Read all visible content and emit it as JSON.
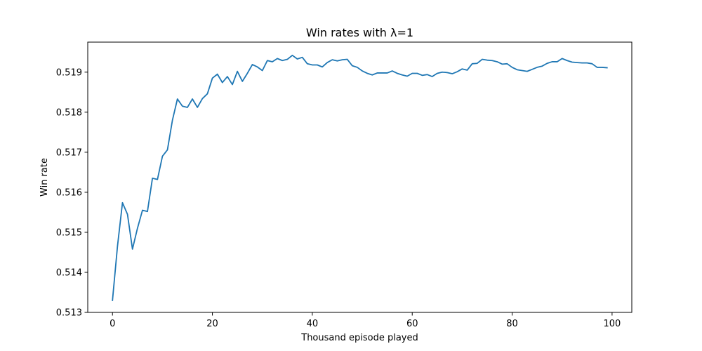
{
  "chart_data": {
    "type": "line",
    "title": "Win rates with λ=1",
    "xlabel": "Thousand episode played",
    "ylabel": "Win rate",
    "xlim": [
      -4.95,
      103.95
    ],
    "ylim": [
      0.513,
      0.51975
    ],
    "x_ticks": [
      0,
      20,
      40,
      60,
      80,
      100
    ],
    "x_tick_labels": [
      "0",
      "20",
      "40",
      "60",
      "80",
      "100"
    ],
    "y_ticks": [
      0.513,
      0.514,
      0.515,
      0.516,
      0.517,
      0.518,
      0.519
    ],
    "y_tick_labels": [
      "0.513",
      "0.514",
      "0.515",
      "0.516",
      "0.517",
      "0.518",
      "0.519"
    ],
    "grid": false,
    "series": [
      {
        "color": "#1f77b4",
        "x": [
          0,
          1,
          2,
          3,
          4,
          5,
          6,
          7,
          8,
          9,
          10,
          11,
          12,
          13,
          14,
          15,
          16,
          17,
          18,
          19,
          20,
          21,
          22,
          23,
          24,
          25,
          26,
          27,
          28,
          29,
          30,
          31,
          32,
          33,
          34,
          35,
          36,
          37,
          38,
          39,
          40,
          41,
          42,
          43,
          44,
          45,
          46,
          47,
          48,
          49,
          50,
          51,
          52,
          53,
          54,
          55,
          56,
          57,
          58,
          59,
          60,
          61,
          62,
          63,
          64,
          65,
          66,
          67,
          68,
          69,
          70,
          71,
          72,
          73,
          74,
          75,
          76,
          77,
          78,
          79,
          80,
          81,
          82,
          83,
          84,
          85,
          86,
          87,
          88,
          89,
          90,
          91,
          92,
          93,
          94,
          95,
          96,
          97,
          98,
          99
        ],
        "y": [
          0.5133,
          0.51465,
          0.51574,
          0.51545,
          0.51458,
          0.5151,
          0.51555,
          0.51552,
          0.51635,
          0.51632,
          0.5169,
          0.51706,
          0.5178,
          0.51833,
          0.51815,
          0.51812,
          0.51833,
          0.51812,
          0.51834,
          0.51846,
          0.51885,
          0.51895,
          0.51874,
          0.51889,
          0.51869,
          0.51902,
          0.51877,
          0.51897,
          0.51919,
          0.51913,
          0.51904,
          0.51929,
          0.51926,
          0.51934,
          0.51929,
          0.51932,
          0.51942,
          0.51933,
          0.51937,
          0.51921,
          0.51918,
          0.51918,
          0.51913,
          0.51924,
          0.51931,
          0.51928,
          0.51931,
          0.51932,
          0.51916,
          0.51912,
          0.51903,
          0.51897,
          0.51893,
          0.51898,
          0.51898,
          0.51898,
          0.51903,
          0.51897,
          0.51893,
          0.5189,
          0.51897,
          0.51897,
          0.51892,
          0.51894,
          0.51889,
          0.51897,
          0.519,
          0.51899,
          0.51896,
          0.51901,
          0.51908,
          0.51905,
          0.51921,
          0.51922,
          0.51932,
          0.5193,
          0.51929,
          0.51926,
          0.5192,
          0.51921,
          0.51912,
          0.51906,
          0.51904,
          0.51902,
          0.51907,
          0.51912,
          0.51915,
          0.51922,
          0.51926,
          0.51926,
          0.51934,
          0.51929,
          0.51925,
          0.51924,
          0.51923,
          0.51923,
          0.51921,
          0.51912,
          0.51912,
          0.51911
        ]
      }
    ]
  }
}
